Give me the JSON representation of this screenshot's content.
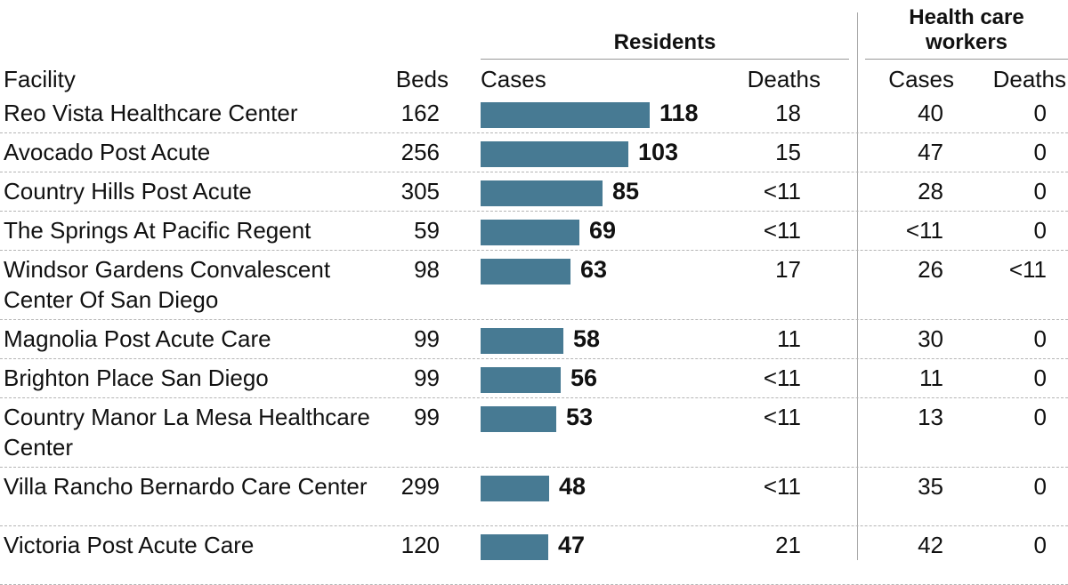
{
  "header": {
    "residents_group": "Residents",
    "health_care_workers_group": "Health care workers",
    "facility": "Facility",
    "beds": "Beds",
    "res_cases": "Cases",
    "res_deaths": "Deaths",
    "hcw_cases": "Cases",
    "hcw_deaths": "Deaths"
  },
  "colors": {
    "bar": "#477a93"
  },
  "chart_data": {
    "type": "bar",
    "orientation": "horizontal",
    "x_max": 118,
    "columns": [
      "Facility",
      "Beds",
      "Cases",
      "Deaths",
      "Cases",
      "Deaths"
    ],
    "rows": [
      {
        "facility": "Reo Vista Healthcare Center",
        "beds": "162",
        "cases": 118,
        "deaths": "18",
        "hcw_cases": "40",
        "hcw_deaths": "0"
      },
      {
        "facility": "Avocado Post Acute",
        "beds": "256",
        "cases": 103,
        "deaths": "15",
        "hcw_cases": "47",
        "hcw_deaths": "0"
      },
      {
        "facility": "Country Hills Post Acute",
        "beds": "305",
        "cases": 85,
        "deaths": "<11",
        "hcw_cases": "28",
        "hcw_deaths": "0"
      },
      {
        "facility": "The Springs At Pacific Regent",
        "beds": "59",
        "cases": 69,
        "deaths": "<11",
        "hcw_cases": "<11",
        "hcw_deaths": "0"
      },
      {
        "facility": "Windsor Gardens Convalescent Center Of San Diego",
        "beds": "98",
        "cases": 63,
        "deaths": "17",
        "hcw_cases": "26",
        "hcw_deaths": "<11"
      },
      {
        "facility": "Magnolia Post Acute Care",
        "beds": "99",
        "cases": 58,
        "deaths": "11",
        "hcw_cases": "30",
        "hcw_deaths": "0"
      },
      {
        "facility": "Brighton Place San Diego",
        "beds": "99",
        "cases": 56,
        "deaths": "<11",
        "hcw_cases": "11",
        "hcw_deaths": "0"
      },
      {
        "facility": "Country Manor La Mesa Healthcare Center",
        "beds": "99",
        "cases": 53,
        "deaths": "<11",
        "hcw_cases": "13",
        "hcw_deaths": "0"
      },
      {
        "facility": "Villa Rancho Bernardo Care Center",
        "beds": "299",
        "cases": 48,
        "deaths": "<11",
        "hcw_cases": "35",
        "hcw_deaths": "0"
      },
      {
        "facility": "Victoria Post Acute Care",
        "beds": "120",
        "cases": 47,
        "deaths": "21",
        "hcw_cases": "42",
        "hcw_deaths": "0"
      }
    ]
  }
}
